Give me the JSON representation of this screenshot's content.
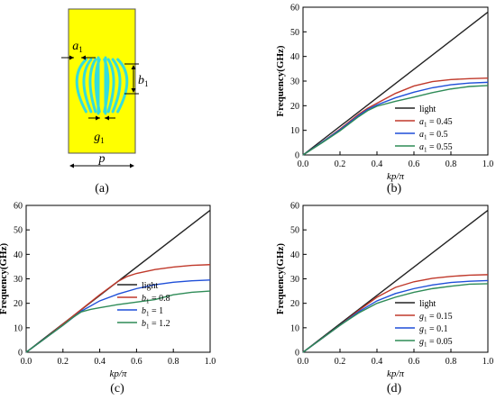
{
  "colors": {
    "unit_cell_bg": "#ffff00",
    "unit_cell_border": "#555555",
    "unit_cell_strips": "#33dddd",
    "axis": "#000000",
    "light": "#222222",
    "red": "#c0392b",
    "blue": "#1f4fd8",
    "green": "#2e8b57"
  },
  "icons": {
    "dimension_arrows": "double-headed-arrow"
  },
  "panels": {
    "a": {
      "caption": "(a)",
      "labels": {
        "a": "a",
        "a_sub": "1",
        "b": "b",
        "b_sub": "1",
        "g": "g",
        "g_sub": "1",
        "p": "p"
      }
    }
  },
  "chart_data": [
    {
      "id": "b",
      "type": "line",
      "caption": "(b)",
      "xlabel": "kp/π",
      "ylabel": "Frequency(GHz)",
      "xlim": [
        0,
        1.0
      ],
      "ylim": [
        0,
        60
      ],
      "xticks": [
        "0.0",
        "0.2",
        "0.4",
        "0.6",
        "0.8",
        "1.0"
      ],
      "yticks": [
        "0",
        "10",
        "20",
        "30",
        "40",
        "50",
        "60"
      ],
      "legend_position": "right-middle",
      "series": [
        {
          "name": "light",
          "legend_var": "",
          "legend_sub": "",
          "legend_val": "",
          "color": "#222222",
          "x": [
            0,
            1.0
          ],
          "y": [
            0,
            58
          ]
        },
        {
          "name": "a1 = 0.45",
          "legend_var": "a",
          "legend_sub": "1",
          "legend_val": " = 0.45",
          "color": "#c0392b",
          "x": [
            0,
            0.1,
            0.2,
            0.3,
            0.35,
            0.4,
            0.5,
            0.6,
            0.7,
            0.8,
            0.9,
            1.0
          ],
          "y": [
            0,
            5,
            10.5,
            16.5,
            19,
            21,
            25,
            28,
            29.8,
            30.6,
            31,
            31.2
          ]
        },
        {
          "name": "a1 = 0.5",
          "legend_var": "a",
          "legend_sub": "1",
          "legend_val": " = 0.5",
          "color": "#1f4fd8",
          "x": [
            0,
            0.1,
            0.2,
            0.3,
            0.35,
            0.4,
            0.5,
            0.6,
            0.7,
            0.8,
            0.9,
            1.0
          ],
          "y": [
            0,
            5,
            10.2,
            16,
            18.5,
            20.3,
            23.2,
            25.5,
            27.3,
            28.5,
            29.2,
            29.5
          ]
        },
        {
          "name": "a1 = 0.55",
          "legend_var": "a",
          "legend_sub": "1",
          "legend_val": " = 0.55",
          "color": "#2e8b57",
          "x": [
            0,
            0.1,
            0.2,
            0.3,
            0.35,
            0.4,
            0.5,
            0.6,
            0.7,
            0.8,
            0.9,
            1.0
          ],
          "y": [
            0,
            4.8,
            9.8,
            15.5,
            18,
            19.8,
            21.8,
            23.5,
            25.3,
            26.8,
            27.8,
            28.2
          ]
        }
      ]
    },
    {
      "id": "c",
      "type": "line",
      "caption": "(c)",
      "xlabel": "kp/π",
      "ylabel": "Frequency(GHz)",
      "xlim": [
        0,
        1.0
      ],
      "ylim": [
        0,
        60
      ],
      "xticks": [
        "0.0",
        "0.2",
        "0.4",
        "0.6",
        "0.8",
        "1.0"
      ],
      "yticks": [
        "0",
        "10",
        "20",
        "30",
        "40",
        "50",
        "60"
      ],
      "legend_position": "bottom-right",
      "series": [
        {
          "name": "light",
          "legend_var": "",
          "legend_sub": "",
          "legend_val": "",
          "color": "#222222",
          "x": [
            0,
            1.0
          ],
          "y": [
            0,
            58
          ]
        },
        {
          "name": "b1 = 0.8",
          "legend_var": "b",
          "legend_sub": "1",
          "legend_val": " = 0.8",
          "color": "#c0392b",
          "x": [
            0,
            0.1,
            0.2,
            0.3,
            0.4,
            0.5,
            0.55,
            0.6,
            0.7,
            0.8,
            0.9,
            1.0
          ],
          "y": [
            0,
            5.5,
            11.5,
            17.5,
            23.5,
            29,
            31,
            32.2,
            33.8,
            34.8,
            35.5,
            35.8
          ]
        },
        {
          "name": "b1 = 1",
          "legend_var": "b",
          "legend_sub": "1",
          "legend_val": " = 1",
          "color": "#1f4fd8",
          "x": [
            0,
            0.1,
            0.2,
            0.3,
            0.4,
            0.5,
            0.6,
            0.7,
            0.8,
            0.9,
            1.0
          ],
          "y": [
            0,
            5.5,
            11,
            16.8,
            21,
            23.8,
            26,
            27.6,
            28.6,
            29.2,
            29.5
          ]
        },
        {
          "name": "b1 = 1.2",
          "legend_var": "b",
          "legend_sub": "1",
          "legend_val": " = 1.2",
          "color": "#2e8b57",
          "x": [
            0,
            0.1,
            0.2,
            0.25,
            0.3,
            0.35,
            0.4,
            0.5,
            0.6,
            0.7,
            0.8,
            0.9,
            1.0
          ],
          "y": [
            0,
            5.5,
            11,
            14,
            16.5,
            17.5,
            18.2,
            19.5,
            20.5,
            21.5,
            23.5,
            24.5,
            25
          ]
        }
      ]
    },
    {
      "id": "d",
      "type": "line",
      "caption": "(d)",
      "xlabel": "kp/π",
      "ylabel": "Frequency(GHz)",
      "xlim": [
        0,
        1.0
      ],
      "ylim": [
        0,
        60
      ],
      "xticks": [
        "0.0",
        "0.2",
        "0.4",
        "0.6",
        "0.8",
        "1.0"
      ],
      "yticks": [
        "0",
        "10",
        "20",
        "30",
        "40",
        "50",
        "60"
      ],
      "legend_position": "bottom-right",
      "series": [
        {
          "name": "light",
          "legend_var": "",
          "legend_sub": "",
          "legend_val": "",
          "color": "#222222",
          "x": [
            0,
            1.0
          ],
          "y": [
            0,
            58
          ]
        },
        {
          "name": "g1 = 0.15",
          "legend_var": "g",
          "legend_sub": "1",
          "legend_val": " = 0.15",
          "color": "#c0392b",
          "x": [
            0,
            0.1,
            0.2,
            0.3,
            0.4,
            0.5,
            0.6,
            0.7,
            0.8,
            0.9,
            1.0
          ],
          "y": [
            0,
            5.5,
            11,
            17,
            22.5,
            26.5,
            28.8,
            30.2,
            31,
            31.5,
            31.7
          ]
        },
        {
          "name": "g1 = 0.1",
          "legend_var": "g",
          "legend_sub": "1",
          "legend_val": " = 0.1",
          "color": "#1f4fd8",
          "x": [
            0,
            0.1,
            0.2,
            0.3,
            0.4,
            0.5,
            0.6,
            0.7,
            0.8,
            0.9,
            1.0
          ],
          "y": [
            0,
            5.5,
            11,
            16.5,
            21,
            24,
            26,
            27.5,
            28.5,
            29,
            29.3
          ]
        },
        {
          "name": "g1 = 0.05",
          "legend_var": "g",
          "legend_sub": "1",
          "legend_val": " = 0.05",
          "color": "#2e8b57",
          "x": [
            0,
            0.1,
            0.2,
            0.3,
            0.4,
            0.5,
            0.6,
            0.7,
            0.8,
            0.9,
            1.0
          ],
          "y": [
            0,
            5.5,
            11,
            16,
            20,
            22.5,
            24.5,
            26,
            27,
            27.8,
            28
          ]
        }
      ]
    }
  ]
}
